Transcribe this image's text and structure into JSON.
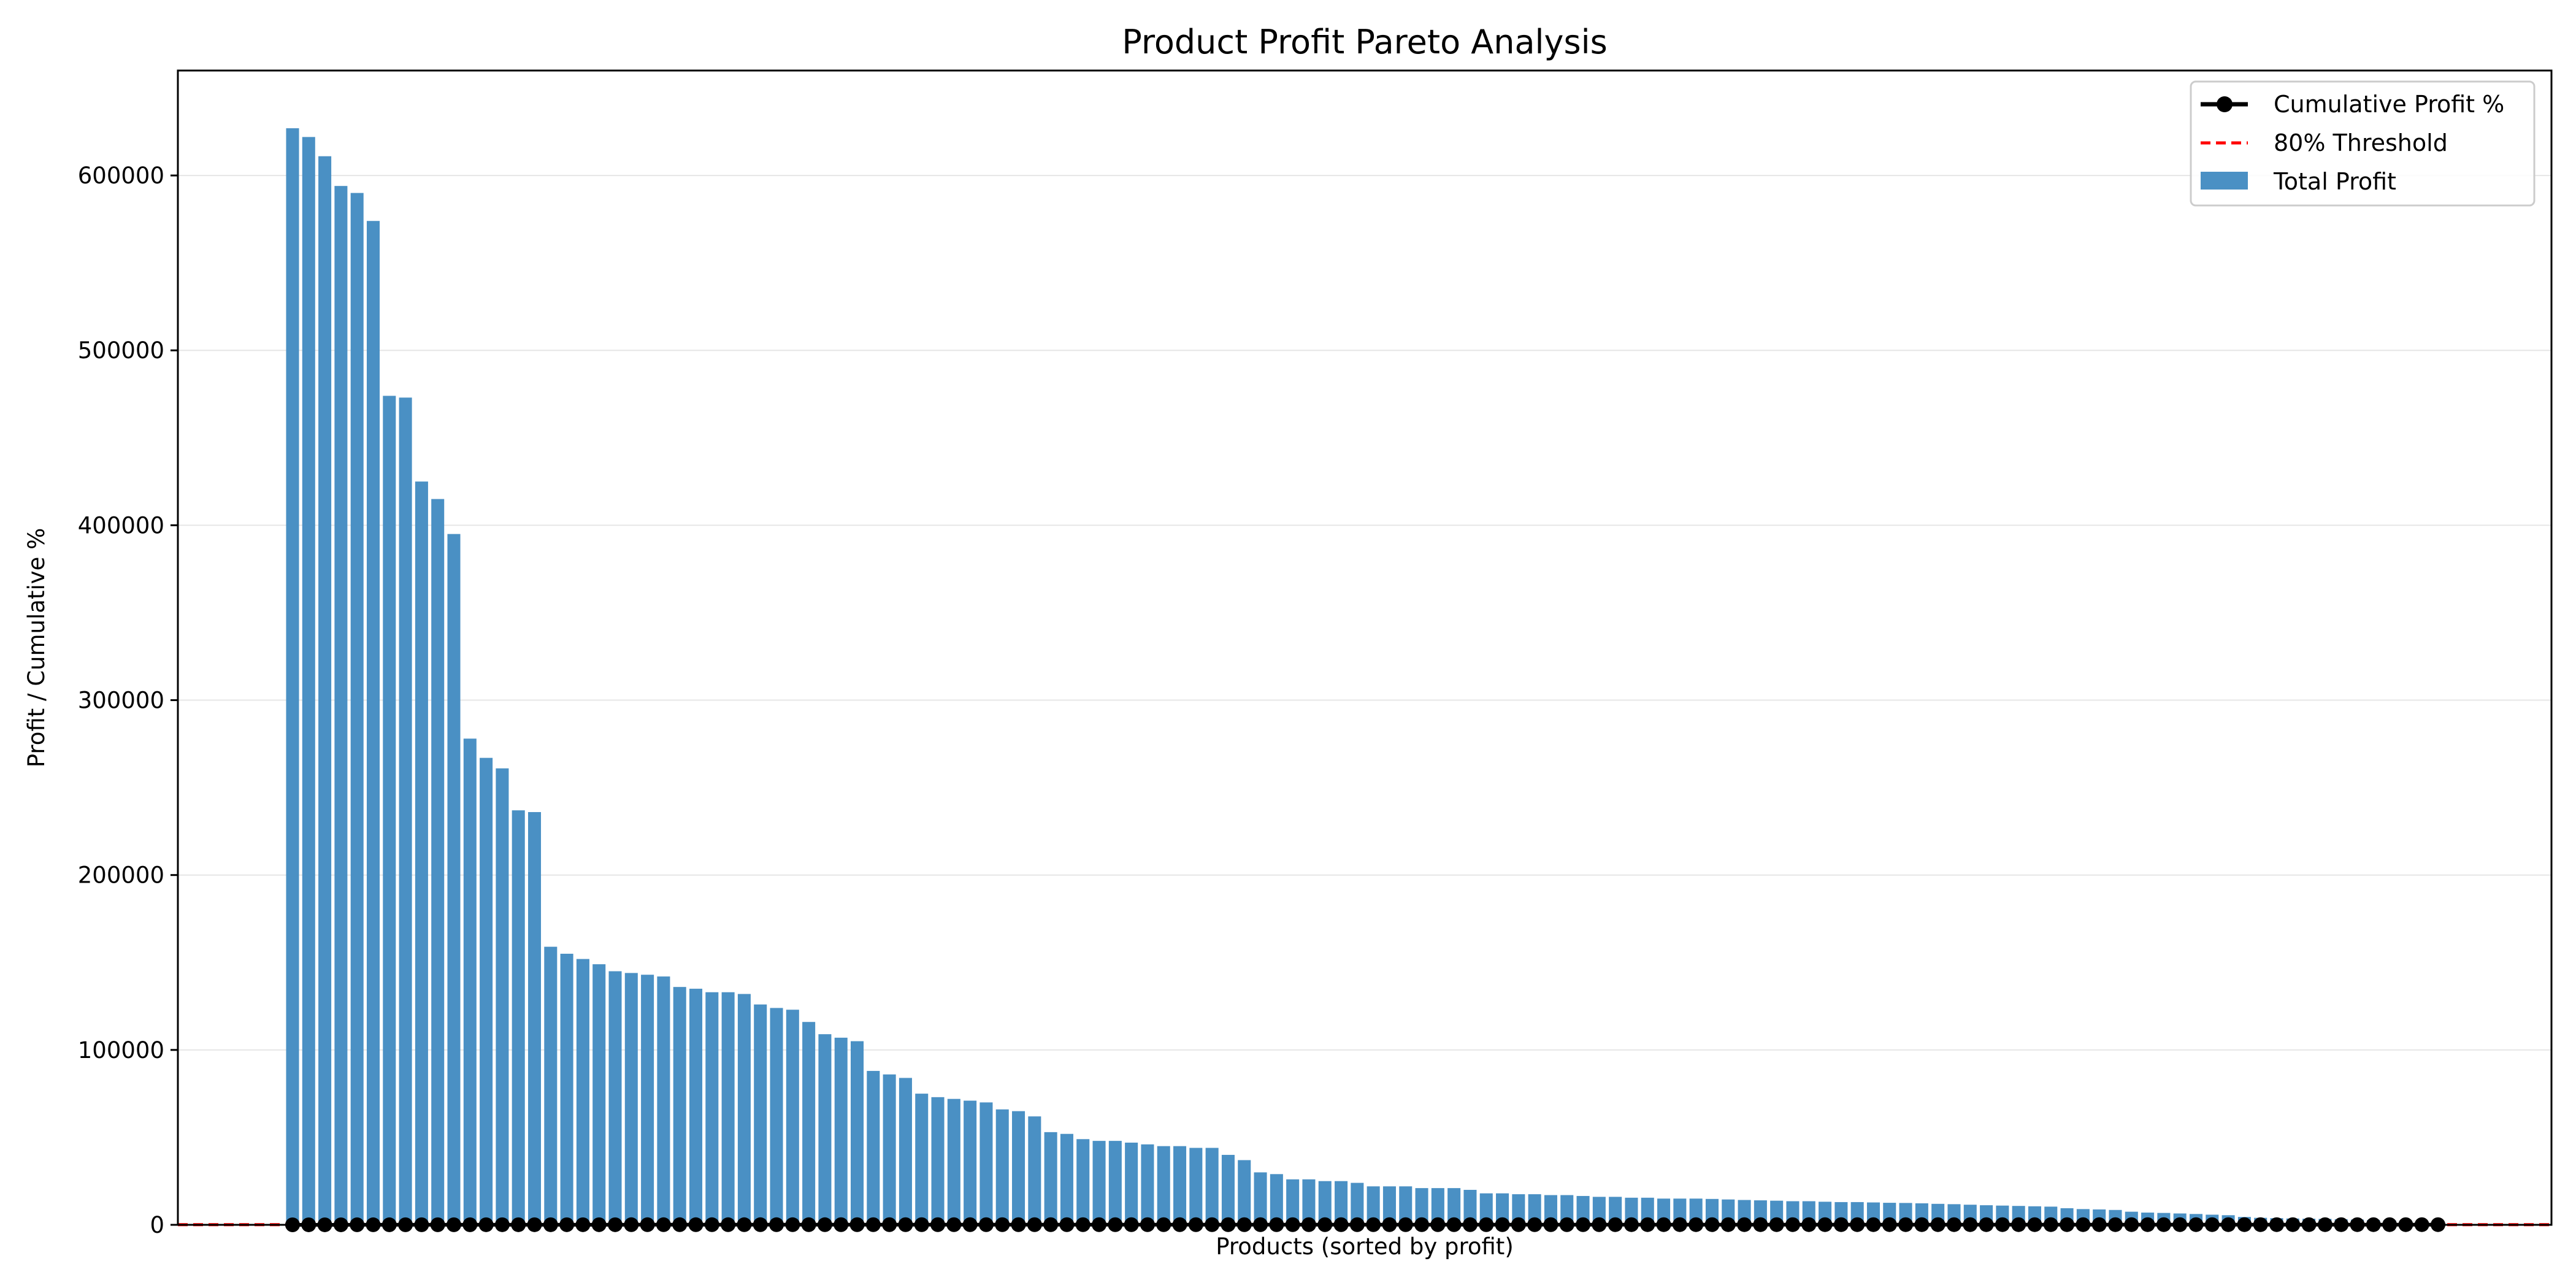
{
  "chart_data": {
    "type": "bar",
    "title": "Product Profit Pareto Analysis",
    "xlabel": "Products (sorted by profit)",
    "ylabel": "Profit / Cumulative %",
    "ylim": [
      0,
      660000
    ],
    "yticks": [
      "0",
      "100000",
      "200000",
      "300000",
      "400000",
      "500000",
      "600000"
    ],
    "ytick_values": [
      0,
      100000,
      200000,
      300000,
      400000,
      500000,
      600000
    ],
    "grid": "y",
    "legend_position": "top-right",
    "colors": {
      "bar": "#4a90c4",
      "line": "#000000",
      "threshold": "#ff0000",
      "grid": "#e6e6e6"
    },
    "series": [
      {
        "name": "Total Profit",
        "type": "bar",
        "values": [
          627000,
          622000,
          611000,
          594000,
          590000,
          574000,
          474000,
          473000,
          425000,
          415000,
          395000,
          278000,
          267000,
          261000,
          237000,
          236000,
          159000,
          155000,
          152000,
          149000,
          145000,
          144000,
          143000,
          142000,
          136000,
          135000,
          133000,
          133000,
          132000,
          126000,
          124000,
          123000,
          116000,
          109000,
          107000,
          105000,
          88000,
          86000,
          84000,
          75000,
          73000,
          72000,
          71000,
          70000,
          66000,
          65000,
          62000,
          53000,
          52000,
          49000,
          48000,
          48000,
          47000,
          46000,
          45000,
          45000,
          44000,
          44000,
          40000,
          37000,
          30000,
          29000,
          26000,
          26000,
          25000,
          25000,
          24000,
          22000,
          22000,
          22000,
          21000,
          21000,
          21000,
          20000,
          18000,
          18000,
          17500,
          17500,
          17000,
          17000,
          16500,
          16000,
          16000,
          15500,
          15500,
          15000,
          15000,
          15000,
          14800,
          14500,
          14200,
          14000,
          13800,
          13500,
          13500,
          13200,
          13000,
          13000,
          12800,
          12600,
          12500,
          12300,
          12000,
          11800,
          11500,
          11200,
          11000,
          10800,
          10600,
          10400,
          9500,
          9000,
          8800,
          8500,
          7500,
          7000,
          6800,
          6500,
          6200,
          5800,
          5500,
          4500,
          4000,
          3800,
          3600,
          3500,
          3400,
          3200,
          3000,
          2800,
          2500,
          2300,
          2000,
          1800
        ]
      },
      {
        "name": "Cumulative Profit %",
        "type": "line"
      },
      {
        "name": "80% Threshold",
        "type": "hline",
        "value": 80
      }
    ]
  }
}
